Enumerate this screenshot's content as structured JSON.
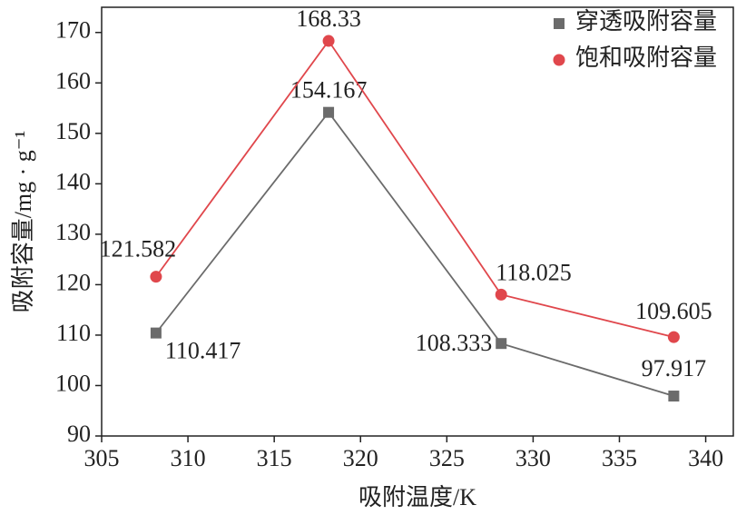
{
  "chart_data": {
    "type": "line",
    "x_label": "吸附温度/K",
    "y_label": "吸附容量/mg · g⁻¹",
    "x": [
      308.15,
      318.15,
      328.15,
      338.15
    ],
    "xlim": [
      305,
      341.6
    ],
    "xticks": [
      305,
      310,
      315,
      320,
      325,
      330,
      335,
      340
    ],
    "ylim": [
      90,
      175
    ],
    "yticks": [
      90,
      100,
      110,
      120,
      130,
      140,
      150,
      160,
      170
    ],
    "legend": "upper right",
    "series": [
      {
        "name": "穿透吸附容量",
        "color": "#6b6b6b",
        "marker": "square",
        "values": [
          110.417,
          154.167,
          108.333,
          97.917
        ]
      },
      {
        "name": "饱和吸附容量",
        "color": "#e0474c",
        "marker": "circle",
        "values": [
          121.582,
          168.33,
          118.025,
          109.605
        ]
      }
    ]
  }
}
